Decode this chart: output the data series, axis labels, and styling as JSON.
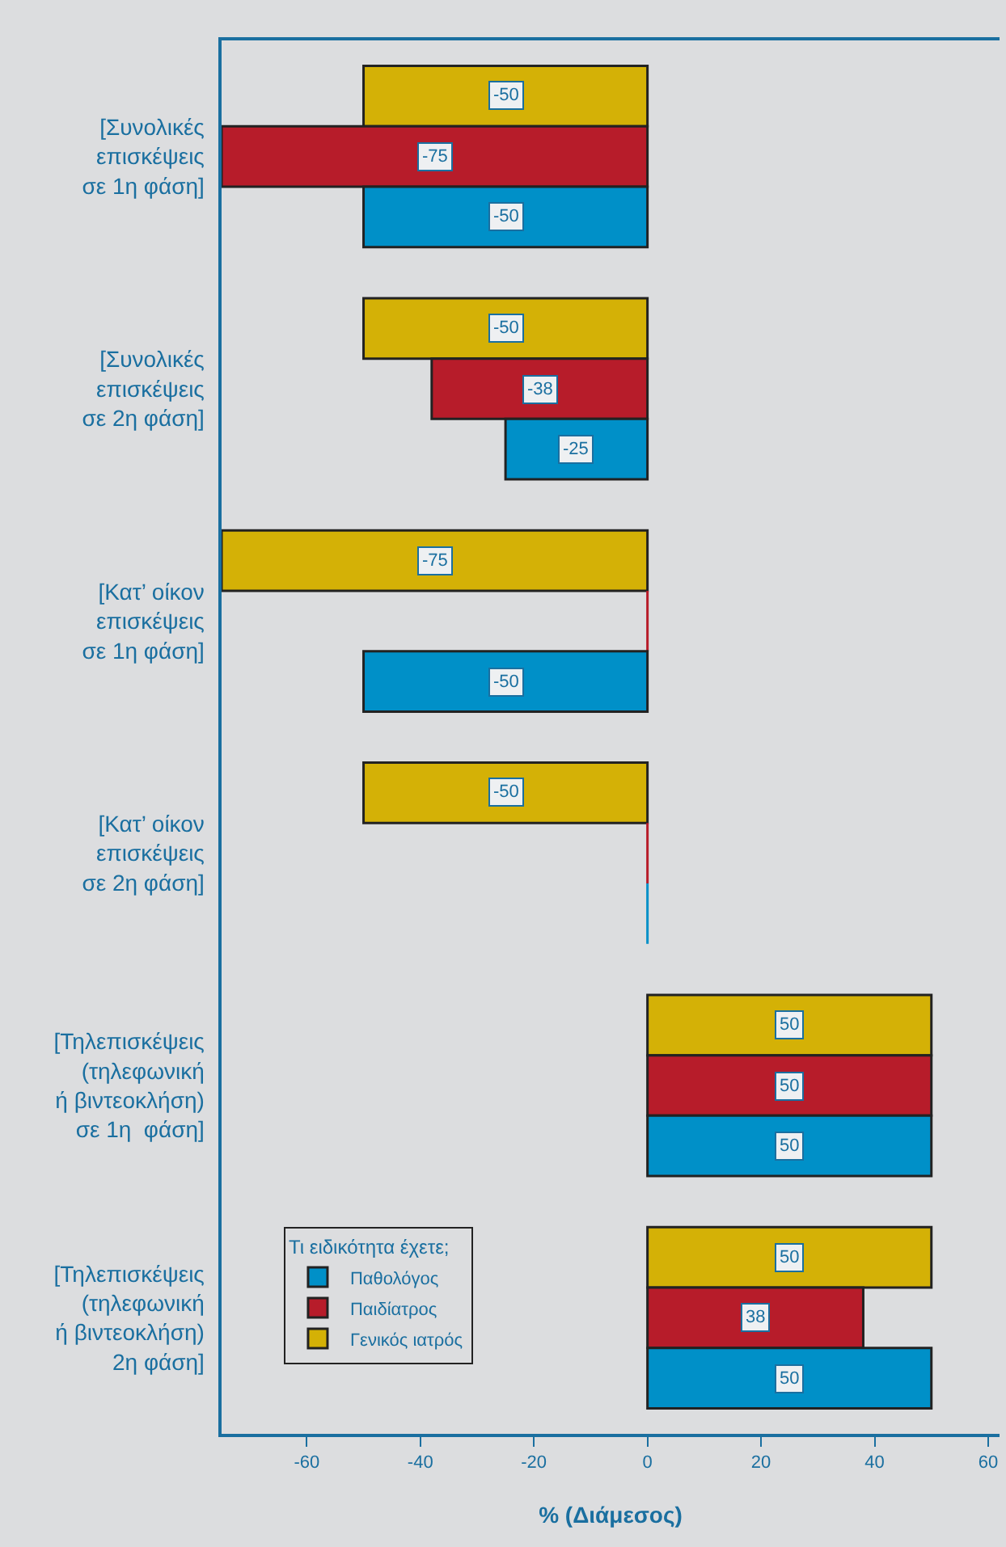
{
  "chart_data": {
    "type": "bar",
    "orientation": "horizontal",
    "categories": [
      "[Συνολικές\nεπισκέψεις\nσε 1η φάση]",
      "[Συνολικές\nεπισκέψεις\nσε 2η φάση]",
      "[Κατ’ οίκον\nεπισκέψεις\nσε 1η φάση]",
      "[Κατ’ οίκον\nεπισκέψεις\nσε 2η φάση]",
      "[Τηλεπισκέψεις\n(τηλεφωνική\nή βιντεοκλήση)\nσε 1η  φάση]",
      "[Τηλεπισκέψεις\n(τηλεφωνική\nή βιντεοκλήση)\n2η φάση]"
    ],
    "series": [
      {
        "name": "Γενικός ιατρός",
        "color": "#d4b106",
        "values": [
          -50,
          -50,
          -75,
          -50,
          50,
          50
        ],
        "value_labels": [
          "-50",
          "-50",
          "-75",
          "-50",
          "50",
          "50"
        ]
      },
      {
        "name": "Παιδίατρος",
        "color": "#b71c2a",
        "values": [
          -75,
          -38,
          0,
          0,
          50,
          38
        ],
        "value_labels": [
          "-75",
          "-38",
          null,
          null,
          "50",
          "38"
        ]
      },
      {
        "name": "Παθολόγος",
        "color": "#0090c8",
        "values": [
          -50,
          -25,
          -50,
          0,
          50,
          50
        ],
        "value_labels": [
          "-50",
          "-25",
          "-50",
          null,
          "50",
          "50"
        ]
      }
    ],
    "xlabel": "% (Διάμεσος)",
    "legend_title": "Τι ειδικότητα έχετε;",
    "xlim": [
      -75,
      62
    ],
    "xticks": [
      -60,
      -40,
      -20,
      0,
      20,
      40,
      60
    ],
    "grid": false,
    "legend": "bottom left"
  }
}
